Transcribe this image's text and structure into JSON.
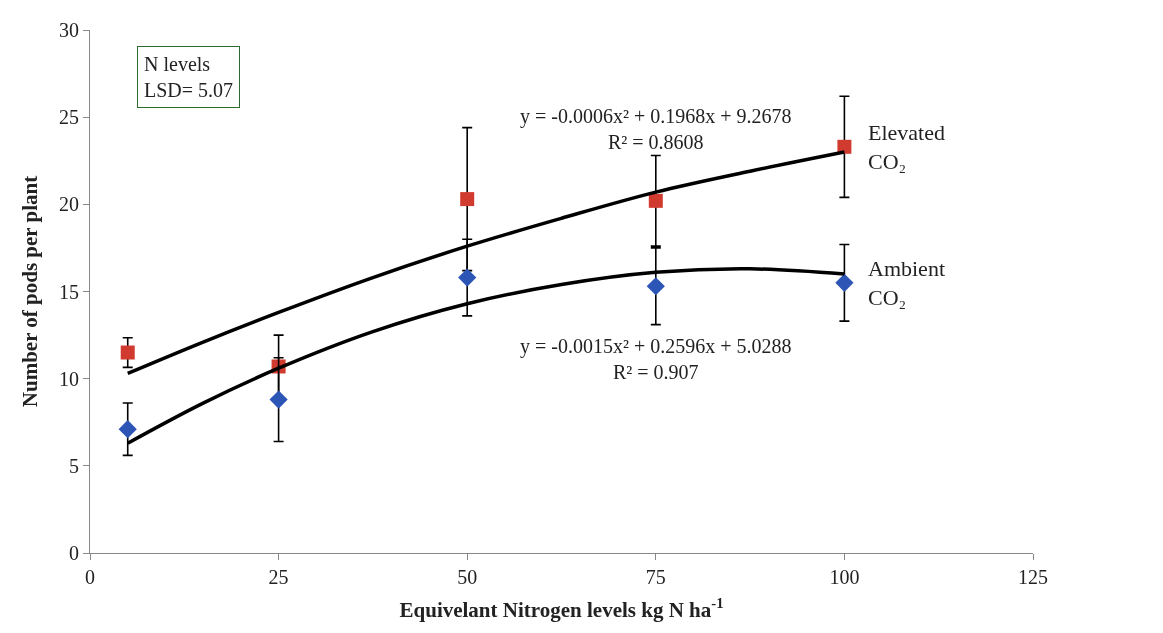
{
  "chart_data": {
    "type": "scatter",
    "xlabel": "Equivelant Nitrogen levels kg N ha$^{-1}$",
    "ylabel": "Number of pods per plant",
    "x": [
      5,
      25,
      50,
      75,
      100
    ],
    "series": [
      {
        "name": "Elevated CO₂",
        "color": "#d13b2f",
        "marker": "square",
        "values": [
          11.5,
          10.7,
          20.3,
          20.2,
          23.3
        ],
        "errors": [
          0.85,
          1.8,
          4.1,
          2.6,
          2.9
        ]
      },
      {
        "name": "Ambient CO₂",
        "color": "#2c55b5",
        "marker": "diamond",
        "values": [
          7.1,
          8.8,
          15.8,
          15.3,
          15.5
        ],
        "errors": [
          1.5,
          2.4,
          2.2,
          2.2,
          2.2
        ]
      },
      {
        "type": "line",
        "color": "#000000",
        "x": [
          5,
          15,
          25,
          37.5,
          50,
          62.5,
          75,
          87.5,
          100
        ],
        "values": [
          10.3,
          12.1,
          13.8,
          15.8,
          17.6,
          19.2,
          20.7,
          21.9,
          23.0
        ]
      },
      {
        "type": "line",
        "color": "#000000",
        "x": [
          5,
          15,
          25,
          37.5,
          50,
          62.5,
          75,
          87.5,
          100
        ],
        "values": [
          6.3,
          8.6,
          10.6,
          12.7,
          14.3,
          15.4,
          16.1,
          16.3,
          16.0
        ]
      }
    ],
    "annotations": [
      "N levels\nLSD= 5.07",
      "y = -0.0006x² + 0.1968x + 9.2678\nR² = 0.8608",
      "y = -0.0015x² + 0.2596x + 5.0288\nR² = 0.907"
    ],
    "xlim": [
      0,
      125
    ],
    "xticks": [
      0,
      25,
      50,
      75,
      100,
      125
    ],
    "ylim": [
      0,
      30
    ],
    "yticks": [
      0,
      5,
      10,
      15,
      20,
      25,
      30
    ]
  }
}
